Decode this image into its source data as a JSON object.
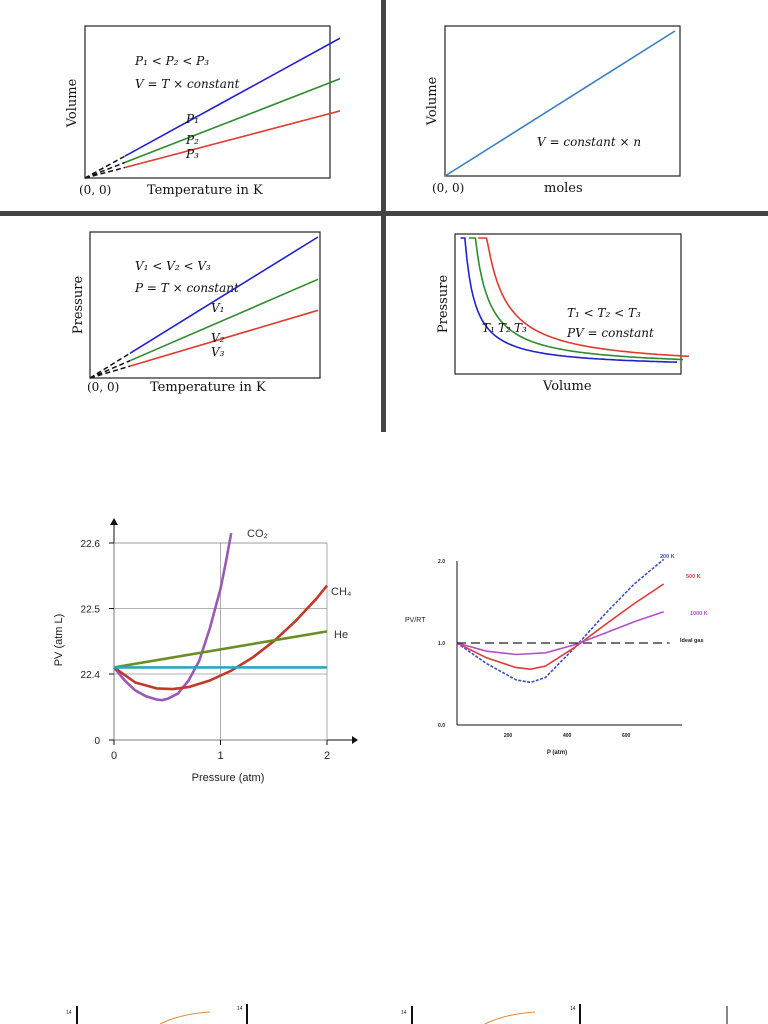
{
  "chart_data": [
    {
      "type": "line",
      "panel": "charles-law",
      "ylabel": "Volume",
      "xlabel": "Temperature in K",
      "origin_label": "(0, 0)",
      "annotation_lines": [
        "P₁ < P₂ < P₃",
        "V = T × constant"
      ],
      "x": [
        0,
        1
      ],
      "series": [
        {
          "name": "P₁",
          "color": "#2222cc",
          "values": [
            0,
            1.0
          ]
        },
        {
          "name": "P₂",
          "color": "#2e8b2e",
          "values": [
            0,
            0.71
          ]
        },
        {
          "name": "P₃",
          "color": "#e03a2e",
          "values": [
            0,
            0.48
          ]
        }
      ]
    },
    {
      "type": "line",
      "panel": "avogadros-law",
      "ylabel": "Volume",
      "xlabel": "moles",
      "origin_label": "(0, 0)",
      "annotation_lines": [
        "V = constant × n"
      ],
      "x": [
        0,
        1
      ],
      "series": [
        {
          "color": "#3a7fc0",
          "values": [
            0,
            1.0
          ]
        }
      ]
    },
    {
      "type": "line",
      "panel": "gay-lussac-law",
      "ylabel": "Pressure",
      "xlabel": "Temperature in K",
      "origin_label": "(0, 0)",
      "annotation_lines": [
        "V₁ < V₂ < V₃",
        "P = T × constant"
      ],
      "x": [
        0,
        1
      ],
      "series": [
        {
          "name": "V₁",
          "color": "#2222cc",
          "values": [
            0,
            1.0
          ]
        },
        {
          "name": "V₂",
          "color": "#2e8b2e",
          "values": [
            0,
            0.7
          ]
        },
        {
          "name": "V₃",
          "color": "#e03a2e",
          "values": [
            0,
            0.48
          ]
        }
      ]
    },
    {
      "type": "line",
      "panel": "boyles-law",
      "ylabel": "Pressure",
      "xlabel": "Volume",
      "annotation_lines": [
        "T₁ < T₂ < T₃",
        "PV = constant"
      ],
      "series": [
        {
          "name": "T₁",
          "color": "#2222cc",
          "k": 0.045
        },
        {
          "name": "T₂",
          "color": "#2e8b2e",
          "k": 0.065
        },
        {
          "name": "T₃",
          "color": "#e03a2e",
          "k": 0.09
        }
      ]
    },
    {
      "type": "line",
      "panel": "real-gas-pv",
      "ylabel": "PV (atm L)",
      "xlabel": "Pressure (atm)",
      "ylim": [
        0,
        22.6
      ],
      "xlim": [
        0,
        2
      ],
      "y_ticks": [
        "22.6",
        "22.5",
        "22.4",
        "0"
      ],
      "x_ticks": [
        "0",
        "1",
        "2"
      ],
      "y_tick_values": [
        22.6,
        22.5,
        22.4,
        0
      ],
      "x_tick_values": [
        0,
        1,
        2
      ],
      "grid": true,
      "series": [
        {
          "name": "CO₂",
          "color": "#9b59b6",
          "points": [
            [
              0,
              22.41
            ],
            [
              0.1,
              22.39
            ],
            [
              0.2,
              22.375
            ],
            [
              0.3,
              22.366
            ],
            [
              0.4,
              22.361
            ],
            [
              0.45,
              22.36
            ],
            [
              0.5,
              22.362
            ],
            [
              0.6,
              22.37
            ],
            [
              0.7,
              22.39
            ],
            [
              0.8,
              22.42
            ],
            [
              0.9,
              22.47
            ],
            [
              1.0,
              22.53
            ],
            [
              1.05,
              22.57
            ],
            [
              1.1,
              22.615
            ]
          ]
        },
        {
          "name": "CH₄",
          "color": "#c0392b",
          "points": [
            [
              0,
              22.41
            ],
            [
              0.2,
              22.387
            ],
            [
              0.4,
              22.378
            ],
            [
              0.55,
              22.377
            ],
            [
              0.7,
              22.38
            ],
            [
              0.9,
              22.39
            ],
            [
              1.1,
              22.405
            ],
            [
              1.3,
              22.425
            ],
            [
              1.5,
              22.45
            ],
            [
              1.7,
              22.48
            ],
            [
              1.9,
              22.515
            ],
            [
              2.0,
              22.535
            ]
          ]
        },
        {
          "name": "He",
          "color": "#6b8e23",
          "points": [
            [
              0,
              22.41
            ],
            [
              2.0,
              22.465
            ]
          ]
        },
        {
          "color": "#2aa8b8",
          "points": [
            [
              0,
              22.41
            ],
            [
              2.0,
              22.41
            ]
          ]
        }
      ]
    },
    {
      "type": "line",
      "panel": "compressibility",
      "ylabel": "PV/RT",
      "xlabel": "P (atm)",
      "y_ticks": [
        "2.0",
        "1.0",
        "0.0"
      ],
      "y_tick_values": [
        2.0,
        1.0,
        0.0
      ],
      "x_ticks": [
        "200",
        "400",
        "600"
      ],
      "x_tick_values": [
        200,
        400,
        600
      ],
      "xlim": [
        0,
        750
      ],
      "ylim": [
        0,
        2.0
      ],
      "series": [
        {
          "name": "200 K",
          "color": "#3a4fc0",
          "dashed": true,
          "points": [
            [
              0,
              1.0
            ],
            [
              100,
              0.75
            ],
            [
              200,
              0.55
            ],
            [
              250,
              0.52
            ],
            [
              300,
              0.58
            ],
            [
              400,
              0.95
            ],
            [
              500,
              1.35
            ],
            [
              600,
              1.72
            ],
            [
              700,
              2.02
            ]
          ]
        },
        {
          "name": "500 K",
          "color": "#e03a3a",
          "points": [
            [
              0,
              1.0
            ],
            [
              100,
              0.82
            ],
            [
              200,
              0.7
            ],
            [
              250,
              0.68
            ],
            [
              300,
              0.72
            ],
            [
              400,
              0.95
            ],
            [
              500,
              1.22
            ],
            [
              600,
              1.48
            ],
            [
              700,
              1.72
            ]
          ]
        },
        {
          "name": "1000 K",
          "color": "#b44fd0",
          "points": [
            [
              0,
              1.0
            ],
            [
              100,
              0.9
            ],
            [
              200,
              0.86
            ],
            [
              300,
              0.88
            ],
            [
              400,
              0.98
            ],
            [
              500,
              1.12
            ],
            [
              600,
              1.26
            ],
            [
              700,
              1.38
            ]
          ]
        },
        {
          "name": "Ideal gas",
          "color": "#222222",
          "dashed": true,
          "points": [
            [
              0,
              1.0
            ],
            [
              720,
              1.0
            ]
          ]
        }
      ]
    }
  ],
  "fragments": {
    "tick_14": "14"
  }
}
